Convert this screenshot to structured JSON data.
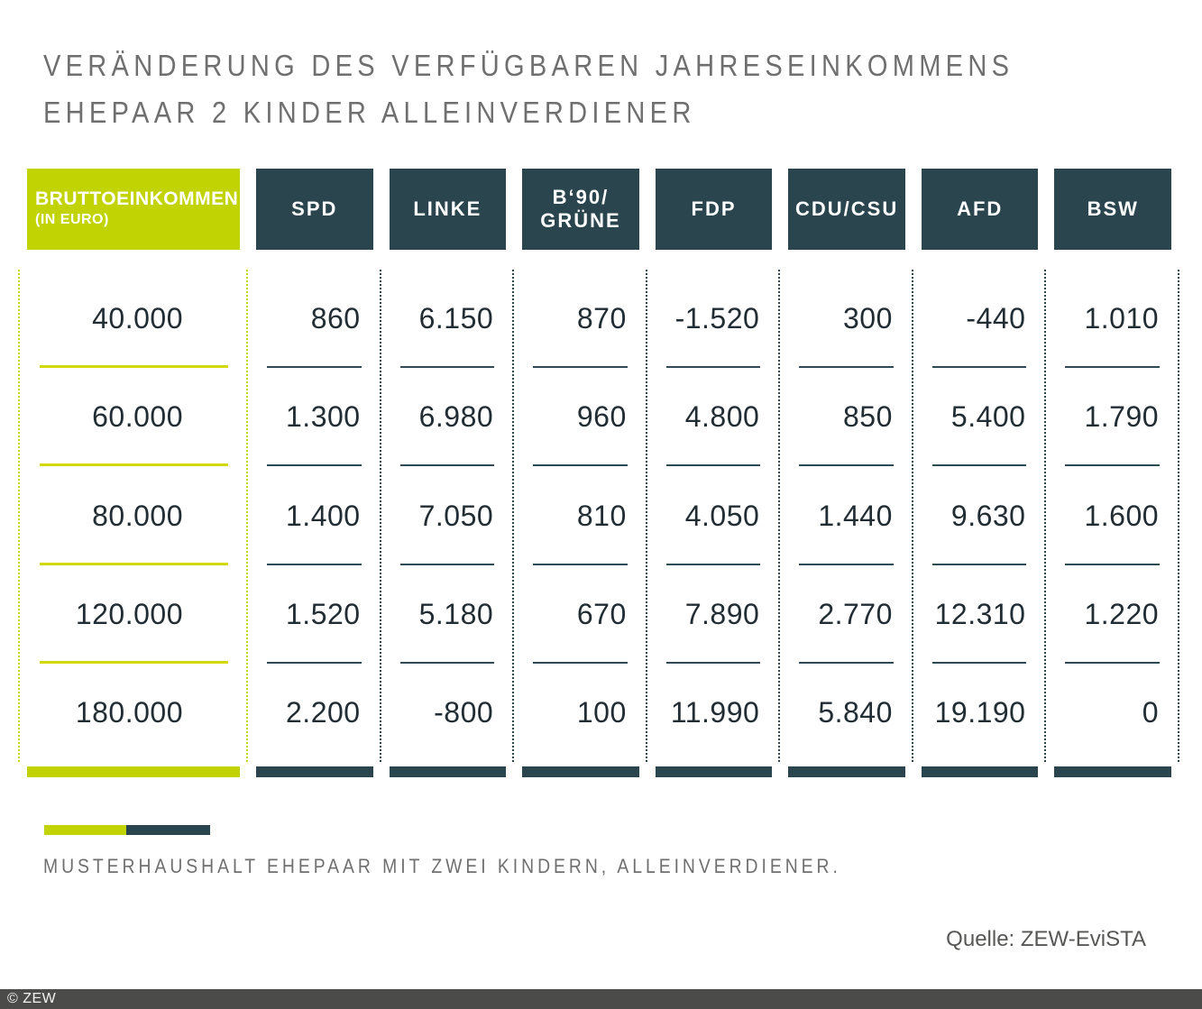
{
  "title": {
    "line1": "VERÄNDERUNG DES VERFÜGBAREN JAHRESEINKOMMENS",
    "line2": "EHEPAAR 2 KINDER ALLEINVERDIENER"
  },
  "table": {
    "income_header": {
      "label": "BRUTTOEINKOMMEN",
      "sublabel": "(IN EURO)"
    },
    "income_rows": [
      "40.000",
      "60.000",
      "80.000",
      "120.000",
      "180.000"
    ],
    "columns": [
      {
        "header": "SPD",
        "values": [
          "860",
          "1.300",
          "1.400",
          "1.520",
          "2.200"
        ]
      },
      {
        "header": "LINKE",
        "values": [
          "6.150",
          "6.980",
          "7.050",
          "5.180",
          "-800"
        ]
      },
      {
        "header": "B‘90/\nGRÜNE",
        "values": [
          "870",
          "960",
          "810",
          "670",
          "100"
        ]
      },
      {
        "header": "FDP",
        "values": [
          "-1.520",
          "4.800",
          "4.050",
          "7.890",
          "11.990"
        ]
      },
      {
        "header": "CDU/CSU",
        "values": [
          "300",
          "850",
          "1.440",
          "2.770",
          "5.840"
        ]
      },
      {
        "header": "AFD",
        "values": [
          "-440",
          "5.400",
          "9.630",
          "12.310",
          "19.190"
        ]
      },
      {
        "header": "BSW",
        "values": [
          "1.010",
          "1.790",
          "1.600",
          "1.220",
          "0"
        ]
      }
    ]
  },
  "footnote": "MUSTERHAUSHALT EHEPAAR MIT ZWEI KINDERN, ALLEINVERDIENER.",
  "source": "Quelle: ZEW-EviSTA",
  "copyright": "© ZEW",
  "colors": {
    "green": "#c2d303",
    "teal": "#2a454e",
    "yellow_line": "#d2d800",
    "teal_line": "#2e4a55",
    "number_text": "#212d33",
    "title_gray": "#706f6f",
    "source_gray": "#575756",
    "bottom_bar": "#4b4b4a"
  },
  "chart_data": {
    "type": "table",
    "title": "VERÄNDERUNG DES VERFÜGBAREN JAHRESEINKOMMENS EHEPAAR 2 KINDER ALLEINVERDIENER",
    "row_axis_label": "BRUTTOEINKOMMEN (IN EURO)",
    "categories": [
      40000,
      60000,
      80000,
      120000,
      180000
    ],
    "series": [
      {
        "name": "SPD",
        "values": [
          860,
          1300,
          1400,
          1520,
          2200
        ]
      },
      {
        "name": "LINKE",
        "values": [
          6150,
          6980,
          7050,
          5180,
          -800
        ]
      },
      {
        "name": "B‘90/GRÜNE",
        "values": [
          870,
          960,
          810,
          670,
          100
        ]
      },
      {
        "name": "FDP",
        "values": [
          -1520,
          4800,
          4050,
          7890,
          11990
        ]
      },
      {
        "name": "CDU/CSU",
        "values": [
          300,
          850,
          1440,
          2770,
          5840
        ]
      },
      {
        "name": "AFD",
        "values": [
          -440,
          5400,
          9630,
          12310,
          19190
        ]
      },
      {
        "name": "BSW",
        "values": [
          1010,
          1790,
          1600,
          1220,
          0
        ]
      }
    ],
    "note": "MUSTERHAUSHALT EHEPAAR MIT ZWEI KINDERN, ALLEINVERDIENER.",
    "source": "Quelle: ZEW-EviSTA"
  }
}
